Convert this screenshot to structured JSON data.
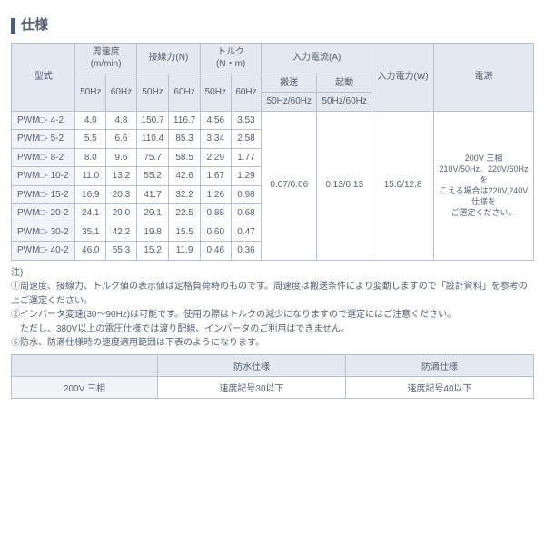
{
  "title": "仕様",
  "headers": {
    "model": "型式",
    "speed": "周速度",
    "speed_unit": "(m/min)",
    "wire": "接線力(N)",
    "torque": "トルク",
    "torque_unit": "(N・m)",
    "in_cur": "入力電流(A)",
    "in_pow": "入力電力(W)",
    "power": "電源",
    "h50": "50Hz",
    "h60": "60Hz",
    "conv": "搬送",
    "start": "起動",
    "hzpair": "50Hz/60Hz"
  },
  "rows": [
    {
      "m": "PWM□- 4-2",
      "s50": "4.0",
      "s60": "4.8",
      "w50": "150.7",
      "w60": "116.7",
      "t50": "4.56",
      "t60": "3.53"
    },
    {
      "m": "PWM□- 5-2",
      "s50": "5.5",
      "s60": "6.6",
      "w50": "110.4",
      "w60": "85.3",
      "t50": "3.34",
      "t60": "2.58"
    },
    {
      "m": "PWM□- 8-2",
      "s50": "8.0",
      "s60": "9.6",
      "w50": "75.7",
      "w60": "58.5",
      "t50": "2.29",
      "t60": "1.77"
    },
    {
      "m": "PWM□- 10-2",
      "s50": "11.0",
      "s60": "13.2",
      "w50": "55.2",
      "w60": "42.6",
      "t50": "1.67",
      "t60": "1.29"
    },
    {
      "m": "PWM□- 15-2",
      "s50": "16.9",
      "s60": "20.3",
      "w50": "41.7",
      "w60": "32.2",
      "t50": "1.26",
      "t60": "0.98"
    },
    {
      "m": "PWM□- 20-2",
      "s50": "24.1",
      "s60": "29.0",
      "w50": "29.1",
      "w60": "22.5",
      "t50": "0.88",
      "t60": "0.68"
    },
    {
      "m": "PWM□- 30-2",
      "s50": "35.1",
      "s60": "42.2",
      "w50": "19.8",
      "w60": "15.5",
      "t50": "0.60",
      "t60": "0.47"
    },
    {
      "m": "PWM□- 40-2",
      "s50": "46.0",
      "s60": "55.3",
      "w50": "15.2",
      "w60": "11.9",
      "t50": "0.46",
      "t60": "0.36"
    }
  ],
  "common": {
    "conv_cur": "0.07/0.06",
    "start_cur": "0.13/0.13",
    "in_pow": "15.0/12.8",
    "ps_line1": "200V 三相",
    "ps_line2": "210V/50Hz、220V/60Hzを",
    "ps_line3": "こえる場合は220V,240V仕様を",
    "ps_line4": "ご選定ください。"
  },
  "notes": {
    "head": "注)",
    "n1": "①周速度、接線力、トルク値の表示値は定格負荷時のものです。周速度は搬送条件により変動しますので「設計資料」を参考の上ご選定ください。",
    "n2a": "②インバータ変速(30～90Hz)は可能です。使用の際はトルクの減少になりますので選定にはご注意ください。",
    "n2b": "　ただし、380V以上の電圧仕様では渡り配線、インバータのご利用はできません。",
    "n5": "⑤防水、防滴仕様時の速度適用範囲は下表のようになります。"
  },
  "table2": {
    "h_wp": "防水仕様",
    "h_dp": "防滴仕様",
    "volt": "200V 三相",
    "wp_val": "速度記号30以下",
    "dp_val": "速度記号40以下"
  },
  "colors": {
    "border": "#b8c0ce",
    "th_bg": "#e3e9f0",
    "lbl_bg": "#f2f4f8",
    "text": "#555f72",
    "accent": "#4b5a7a"
  }
}
